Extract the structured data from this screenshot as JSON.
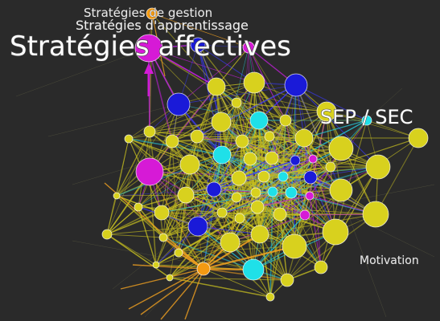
{
  "labels": {
    "gestion": "Stratégies de gestion",
    "apprentissage": "Stratégies d'apprentissage",
    "affectives": "Stratégies affectives",
    "sep_sec": "SEP / SEC",
    "motivation": "Motivation"
  },
  "colors": {
    "background": "#2a2a2a",
    "yellow_node": "#d8d11e",
    "cyan_node": "#1fe0e8",
    "blue_node": "#1a1ad8",
    "magenta_node": "#d61ad6",
    "orange_node": "#f39a12",
    "edge_blue": "#3a3aff",
    "edge_cyan": "#28c8d8",
    "edge_yellow": "#c8c020",
    "edge_orange": "#f0a020",
    "edge_magenta": "#c020d8"
  }
}
